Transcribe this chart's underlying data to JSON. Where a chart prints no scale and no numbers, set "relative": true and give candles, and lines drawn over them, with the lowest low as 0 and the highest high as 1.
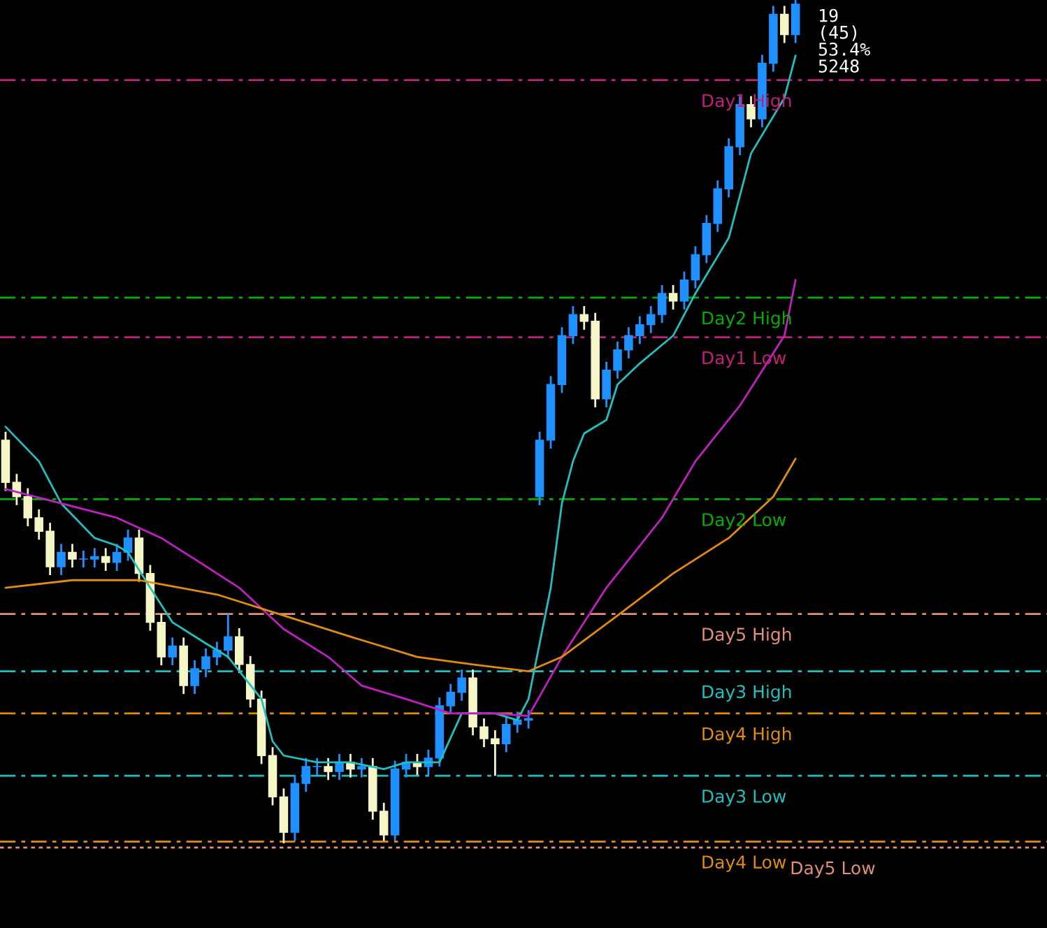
{
  "chart_data": {
    "type": "candlestick",
    "relative": true,
    "tick_labels": false,
    "grid": false,
    "legend": false,
    "categories": [
      null,
      null,
      null,
      null,
      null,
      null,
      null,
      null,
      null,
      null,
      null,
      null,
      null,
      null,
      null,
      null,
      null,
      null,
      null,
      null,
      null,
      null,
      null,
      null,
      null,
      null,
      null,
      null,
      null,
      null,
      null,
      null,
      null,
      null,
      null,
      null,
      null,
      null,
      null,
      null,
      null,
      null,
      null,
      null,
      null,
      null,
      null,
      null,
      null,
      null,
      null,
      null,
      null,
      null,
      null,
      null,
      null,
      null,
      null,
      null,
      null,
      null,
      null,
      null,
      null,
      null,
      null,
      null,
      null,
      null,
      null,
      null
    ],
    "ohlc": [
      [
        0.478,
        0.488,
        0.418,
        0.428
      ],
      [
        0.428,
        0.438,
        0.401,
        0.411
      ],
      [
        0.411,
        0.421,
        0.376,
        0.386
      ],
      [
        0.386,
        0.396,
        0.36,
        0.37
      ],
      [
        0.37,
        0.38,
        0.318,
        0.328
      ],
      [
        0.328,
        0.355,
        0.318,
        0.345
      ],
      [
        0.345,
        0.355,
        0.327,
        0.337
      ],
      [
        0.337,
        0.347,
        0.327,
        0.337
      ],
      [
        0.337,
        0.35,
        0.327,
        0.34
      ],
      [
        0.34,
        0.35,
        0.323,
        0.333
      ],
      [
        0.333,
        0.355,
        0.323,
        0.345
      ],
      [
        0.345,
        0.372,
        0.335,
        0.362
      ],
      [
        0.362,
        0.372,
        0.31,
        0.32
      ],
      [
        0.32,
        0.33,
        0.252,
        0.262
      ],
      [
        0.262,
        0.272,
        0.211,
        0.221
      ],
      [
        0.221,
        0.244,
        0.211,
        0.234
      ],
      [
        0.234,
        0.244,
        0.177,
        0.187
      ],
      [
        0.187,
        0.217,
        0.177,
        0.207
      ],
      [
        0.207,
        0.231,
        0.197,
        0.221
      ],
      [
        0.221,
        0.239,
        0.211,
        0.229
      ],
      [
        0.229,
        0.272,
        0.219,
        0.245
      ],
      [
        0.245,
        0.255,
        0.202,
        0.212
      ],
      [
        0.212,
        0.222,
        0.161,
        0.171
      ],
      [
        0.171,
        0.181,
        0.094,
        0.104
      ],
      [
        0.104,
        0.114,
        0.045,
        0.055
      ],
      [
        0.055,
        0.065,
        0.0,
        0.013
      ],
      [
        0.013,
        0.081,
        0.003,
        0.071
      ],
      [
        0.071,
        0.101,
        0.061,
        0.091
      ],
      [
        0.091,
        0.101,
        0.081,
        0.091
      ],
      [
        0.091,
        0.101,
        0.075,
        0.085
      ],
      [
        0.085,
        0.106,
        0.075,
        0.096
      ],
      [
        0.096,
        0.106,
        0.078,
        0.088
      ],
      [
        0.088,
        0.101,
        0.078,
        0.091
      ],
      [
        0.091,
        0.101,
        0.028,
        0.038
      ],
      [
        0.038,
        0.048,
        0.003,
        0.01
      ],
      [
        0.01,
        0.098,
        0.003,
        0.088
      ],
      [
        0.088,
        0.106,
        0.078,
        0.096
      ],
      [
        0.096,
        0.106,
        0.081,
        0.091
      ],
      [
        0.091,
        0.111,
        0.081,
        0.101
      ],
      [
        0.101,
        0.173,
        0.091,
        0.163
      ],
      [
        0.163,
        0.189,
        0.153,
        0.179
      ],
      [
        0.179,
        0.206,
        0.169,
        0.196
      ],
      [
        0.196,
        0.206,
        0.128,
        0.138
      ],
      [
        0.138,
        0.148,
        0.114,
        0.124
      ],
      [
        0.124,
        0.134,
        0.08,
        0.118
      ],
      [
        0.118,
        0.151,
        0.108,
        0.141
      ],
      [
        0.141,
        0.156,
        0.131,
        0.146
      ],
      [
        0.146,
        0.158,
        0.136,
        0.148
      ],
      [
        0.411,
        0.488,
        0.401,
        0.478
      ],
      [
        0.478,
        0.554,
        0.468,
        0.544
      ],
      [
        0.544,
        0.612,
        0.534,
        0.602
      ],
      [
        0.602,
        0.637,
        0.592,
        0.627
      ],
      [
        0.627,
        0.637,
        0.609,
        0.619
      ],
      [
        0.619,
        0.629,
        0.517,
        0.527
      ],
      [
        0.527,
        0.571,
        0.517,
        0.561
      ],
      [
        0.561,
        0.595,
        0.551,
        0.585
      ],
      [
        0.585,
        0.612,
        0.575,
        0.602
      ],
      [
        0.602,
        0.625,
        0.592,
        0.615
      ],
      [
        0.615,
        0.637,
        0.605,
        0.627
      ],
      [
        0.627,
        0.662,
        0.617,
        0.652
      ],
      [
        0.652,
        0.662,
        0.633,
        0.643
      ],
      [
        0.643,
        0.678,
        0.633,
        0.668
      ],
      [
        0.668,
        0.708,
        0.658,
        0.698
      ],
      [
        0.698,
        0.745,
        0.688,
        0.735
      ],
      [
        0.735,
        0.786,
        0.725,
        0.776
      ],
      [
        0.776,
        0.836,
        0.766,
        0.826
      ],
      [
        0.826,
        0.886,
        0.816,
        0.876
      ],
      [
        0.876,
        0.886,
        0.849,
        0.859
      ],
      [
        0.859,
        0.935,
        0.849,
        0.925
      ],
      [
        0.925,
        0.993,
        0.915,
        0.983
      ],
      [
        0.983,
        0.993,
        0.949,
        0.959
      ],
      [
        0.959,
        1.0,
        0.949,
        0.995
      ]
    ],
    "series": [
      {
        "type": "line",
        "color": "#20c0c0",
        "values": [
          0.494,
          null,
          null,
          0.453,
          null,
          0.403,
          null,
          null,
          0.362,
          null,
          0.353,
          0.345,
          null,
          0.303,
          null,
          0.262,
          null,
          null,
          0.237,
          null,
          0.221,
          null,
          null,
          0.171,
          0.121,
          0.104,
          null,
          null,
          0.096,
          null,
          null,
          0.096,
          null,
          null,
          0.088,
          null,
          0.096,
          null,
          null,
          0.096,
          null,
          0.154,
          null,
          null,
          0.154,
          null,
          0.146,
          0.171,
          null,
          0.303,
          0.403,
          0.453,
          0.486,
          null,
          0.502,
          0.544,
          null,
          0.569,
          null,
          null,
          0.602,
          null,
          0.652,
          null,
          null,
          0.718,
          null,
          0.818,
          null,
          null,
          0.884,
          0.934
        ]
      },
      {
        "type": "line",
        "color": "#c020c0",
        "values": [
          0.42,
          null,
          null,
          null,
          null,
          0.403,
          null,
          null,
          null,
          null,
          0.386,
          null,
          null,
          null,
          0.362,
          null,
          null,
          0.337,
          null,
          null,
          null,
          0.303,
          null,
          null,
          null,
          0.254,
          null,
          null,
          null,
          0.221,
          null,
          null,
          0.187,
          null,
          null,
          null,
          0.171,
          null,
          null,
          null,
          0.154,
          null,
          null,
          null,
          0.154,
          null,
          null,
          0.151,
          null,
          null,
          0.221,
          null,
          null,
          null,
          0.303,
          null,
          null,
          null,
          null,
          0.386,
          null,
          null,
          0.453,
          null,
          null,
          null,
          0.519,
          null,
          null,
          null,
          0.602,
          0.668
        ]
      },
      {
        "type": "line",
        "color": "#e08c10",
        "values": [
          0.303,
          null,
          null,
          null,
          null,
          null,
          0.312,
          null,
          null,
          null,
          null,
          null,
          0.312,
          null,
          null,
          null,
          null,
          null,
          null,
          0.295,
          null,
          null,
          null,
          null,
          null,
          0.27,
          null,
          null,
          null,
          null,
          null,
          0.245,
          null,
          null,
          null,
          null,
          null,
          0.221,
          null,
          null,
          null,
          null,
          0.212,
          null,
          null,
          null,
          null,
          0.204,
          null,
          null,
          0.221,
          null,
          null,
          null,
          null,
          0.27,
          null,
          null,
          null,
          null,
          0.32,
          null,
          null,
          null,
          null,
          0.362,
          null,
          null,
          null,
          0.411,
          null,
          0.456
        ]
      }
    ],
    "ref_lines": [
      {
        "axis": "y",
        "value": 0.905,
        "label": "Day1 High",
        "color": "#c0207a",
        "line_style": "dashed"
      },
      {
        "axis": "y",
        "value": 0.647,
        "label": "Day2 High",
        "color": "#00b000",
        "line_style": "dashed"
      },
      {
        "axis": "y",
        "value": 0.6,
        "label": "Day1 Low",
        "color": "#c0207a",
        "line_style": "dashed"
      },
      {
        "axis": "y",
        "value": 0.408,
        "label": "Day2 Low",
        "color": "#00b000",
        "line_style": "dashed"
      },
      {
        "axis": "y",
        "value": 0.272,
        "label": "Day5 High",
        "color": "#e0907a",
        "line_style": "dashed"
      },
      {
        "axis": "y",
        "value": 0.204,
        "label": "Day3 High",
        "color": "#20c0c0",
        "line_style": "dashed"
      },
      {
        "axis": "y",
        "value": 0.154,
        "label": "Day4 High",
        "color": "#e08c10",
        "line_style": "dashed"
      },
      {
        "axis": "y",
        "value": 0.08,
        "label": "Day3 Low",
        "color": "#20c0c0",
        "line_style": "dashed"
      },
      {
        "axis": "y",
        "value": 0.002,
        "label": "Day4 Low",
        "color": "#e08c10",
        "line_style": "dashed"
      },
      {
        "axis": "y",
        "value": -0.005,
        "label": "Day5 Low",
        "color": "#e0907a",
        "line_style": "dotted"
      }
    ],
    "annotations": [
      "19",
      "(45)",
      "53.4%",
      "5248"
    ]
  }
}
